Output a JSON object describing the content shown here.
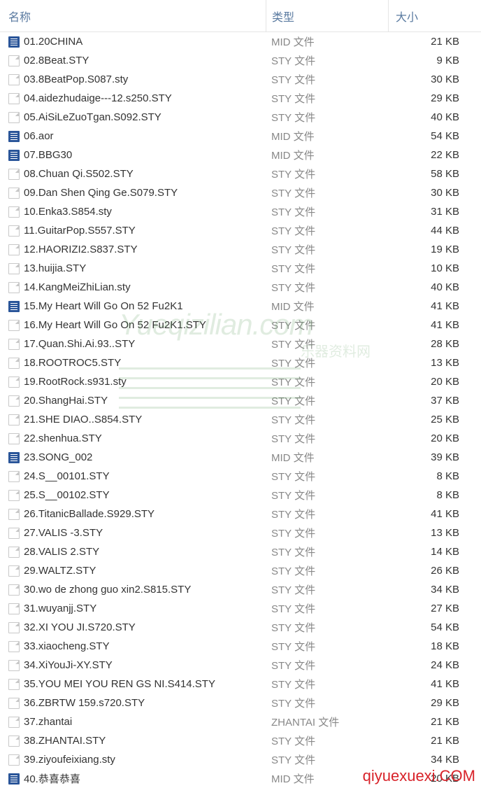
{
  "header": {
    "name": "名称",
    "type": "类型",
    "size": "大小"
  },
  "files": [
    {
      "icon": "mid",
      "name": "01.20CHINA",
      "type": "MID 文件",
      "size": "21 KB"
    },
    {
      "icon": "sty",
      "name": "02.8Beat.STY",
      "type": "STY 文件",
      "size": "9 KB"
    },
    {
      "icon": "sty",
      "name": "03.8BeatPop.S087.sty",
      "type": "STY 文件",
      "size": "30 KB"
    },
    {
      "icon": "sty",
      "name": "04.aidezhudaige---12.s250.STY",
      "type": "STY 文件",
      "size": "29 KB"
    },
    {
      "icon": "sty",
      "name": "05.AiSiLeZuoTgan.S092.STY",
      "type": "STY 文件",
      "size": "40 KB"
    },
    {
      "icon": "mid",
      "name": "06.aor",
      "type": "MID 文件",
      "size": "54 KB"
    },
    {
      "icon": "mid",
      "name": "07.BBG30",
      "type": "MID 文件",
      "size": "22 KB"
    },
    {
      "icon": "sty",
      "name": "08.Chuan Qi.S502.STY",
      "type": "STY 文件",
      "size": "58 KB"
    },
    {
      "icon": "sty",
      "name": "09.Dan Shen Qing Ge.S079.STY",
      "type": "STY 文件",
      "size": "30 KB"
    },
    {
      "icon": "sty",
      "name": "10.Enka3.S854.sty",
      "type": "STY 文件",
      "size": "31 KB"
    },
    {
      "icon": "sty",
      "name": "11.GuitarPop.S557.STY",
      "type": "STY 文件",
      "size": "44 KB"
    },
    {
      "icon": "sty",
      "name": "12.HAORIZI2.S837.STY",
      "type": "STY 文件",
      "size": "19 KB"
    },
    {
      "icon": "sty",
      "name": "13.huijia.STY",
      "type": "STY 文件",
      "size": "10 KB"
    },
    {
      "icon": "sty",
      "name": "14.KangMeiZhiLian.sty",
      "type": "STY 文件",
      "size": "40 KB"
    },
    {
      "icon": "mid",
      "name": "15.My Heart Will Go On 52 Fu2K1",
      "type": "MID 文件",
      "size": "41 KB"
    },
    {
      "icon": "sty",
      "name": "16.My Heart Will Go On 52 Fu2K1.STY",
      "type": "STY 文件",
      "size": "41 KB"
    },
    {
      "icon": "sty",
      "name": "17.Quan.Shi.Ai.93..STY",
      "type": "STY 文件",
      "size": "28 KB"
    },
    {
      "icon": "sty",
      "name": "18.ROOTROC5.STY",
      "type": "STY 文件",
      "size": "13 KB"
    },
    {
      "icon": "sty",
      "name": "19.RootRock.s931.sty",
      "type": "STY 文件",
      "size": "20 KB"
    },
    {
      "icon": "sty",
      "name": "20.ShangHai.STY",
      "type": "STY 文件",
      "size": "37 KB"
    },
    {
      "icon": "sty",
      "name": "21.SHE DIAO..S854.STY",
      "type": "STY 文件",
      "size": "25 KB"
    },
    {
      "icon": "sty",
      "name": "22.shenhua.STY",
      "type": "STY 文件",
      "size": "20 KB"
    },
    {
      "icon": "mid",
      "name": "23.SONG_002",
      "type": "MID 文件",
      "size": "39 KB"
    },
    {
      "icon": "sty",
      "name": "24.S__00101.STY",
      "type": "STY 文件",
      "size": "8 KB"
    },
    {
      "icon": "sty",
      "name": "25.S__00102.STY",
      "type": "STY 文件",
      "size": "8 KB"
    },
    {
      "icon": "sty",
      "name": "26.TitanicBallade.S929.STY",
      "type": "STY 文件",
      "size": "41 KB"
    },
    {
      "icon": "sty",
      "name": "27.VALIS -3.STY",
      "type": "STY 文件",
      "size": "13 KB"
    },
    {
      "icon": "sty",
      "name": "28.VALIS 2.STY",
      "type": "STY 文件",
      "size": "14 KB"
    },
    {
      "icon": "sty",
      "name": "29.WALTZ.STY",
      "type": "STY 文件",
      "size": "26 KB"
    },
    {
      "icon": "sty",
      "name": "30.wo de zhong guo xin2.S815.STY",
      "type": "STY 文件",
      "size": "34 KB"
    },
    {
      "icon": "sty",
      "name": "31.wuyanjj.STY",
      "type": "STY 文件",
      "size": "27 KB"
    },
    {
      "icon": "sty",
      "name": "32.XI YOU JI.S720.STY",
      "type": "STY 文件",
      "size": "54 KB"
    },
    {
      "icon": "sty",
      "name": "33.xiaocheng.STY",
      "type": "STY 文件",
      "size": "18 KB"
    },
    {
      "icon": "sty",
      "name": "34.XiYouJi-XY.STY",
      "type": "STY 文件",
      "size": "24 KB"
    },
    {
      "icon": "sty",
      "name": "35.YOU MEI YOU REN GS NI.S414.STY",
      "type": "STY 文件",
      "size": "41 KB"
    },
    {
      "icon": "sty",
      "name": "36.ZBRTW 159.s720.STY",
      "type": "STY 文件",
      "size": "29 KB"
    },
    {
      "icon": "sty",
      "name": "37.zhantai",
      "type": "ZHANTAI 文件",
      "size": "21 KB"
    },
    {
      "icon": "sty",
      "name": "38.ZHANTAI.STY",
      "type": "STY 文件",
      "size": "21 KB"
    },
    {
      "icon": "sty",
      "name": "39.ziyoufeixiang.sty",
      "type": "STY 文件",
      "size": "34 KB"
    },
    {
      "icon": "mid",
      "name": "40.恭喜恭喜",
      "type": "MID 文件",
      "size": "20 KB"
    }
  ],
  "watermark1": {
    "text": "Yueqizilian.com",
    "sub": "乐器资料网"
  },
  "watermark2": {
    "text": "qiyuexuexi.COM"
  }
}
